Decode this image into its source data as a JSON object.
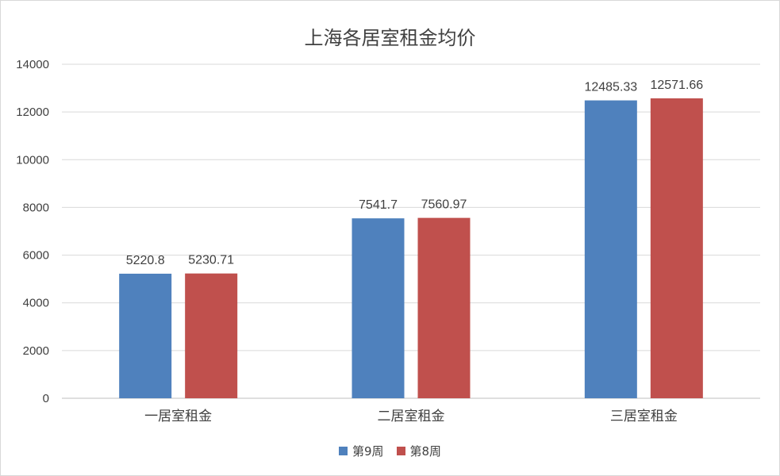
{
  "chart_data": {
    "type": "bar",
    "title": "上海各居室租金均价",
    "categories": [
      "一居室租金",
      "二居室租金",
      "三居室租金"
    ],
    "series": [
      {
        "name": "第9周",
        "color": "#4f81bd",
        "values": [
          5220.8,
          7541.7,
          12485.33
        ],
        "labels": [
          "5220.8",
          "7541.7",
          "12485.33"
        ]
      },
      {
        "name": "第8周",
        "color": "#c0504d",
        "values": [
          5230.71,
          7560.97,
          12571.66
        ],
        "labels": [
          "5230.71",
          "7560.97",
          "12571.66"
        ]
      }
    ],
    "ylim": [
      0,
      14000
    ],
    "yticks": [
      0,
      2000,
      4000,
      6000,
      8000,
      10000,
      12000,
      14000
    ],
    "grid": true,
    "legend_position": "bottom"
  }
}
